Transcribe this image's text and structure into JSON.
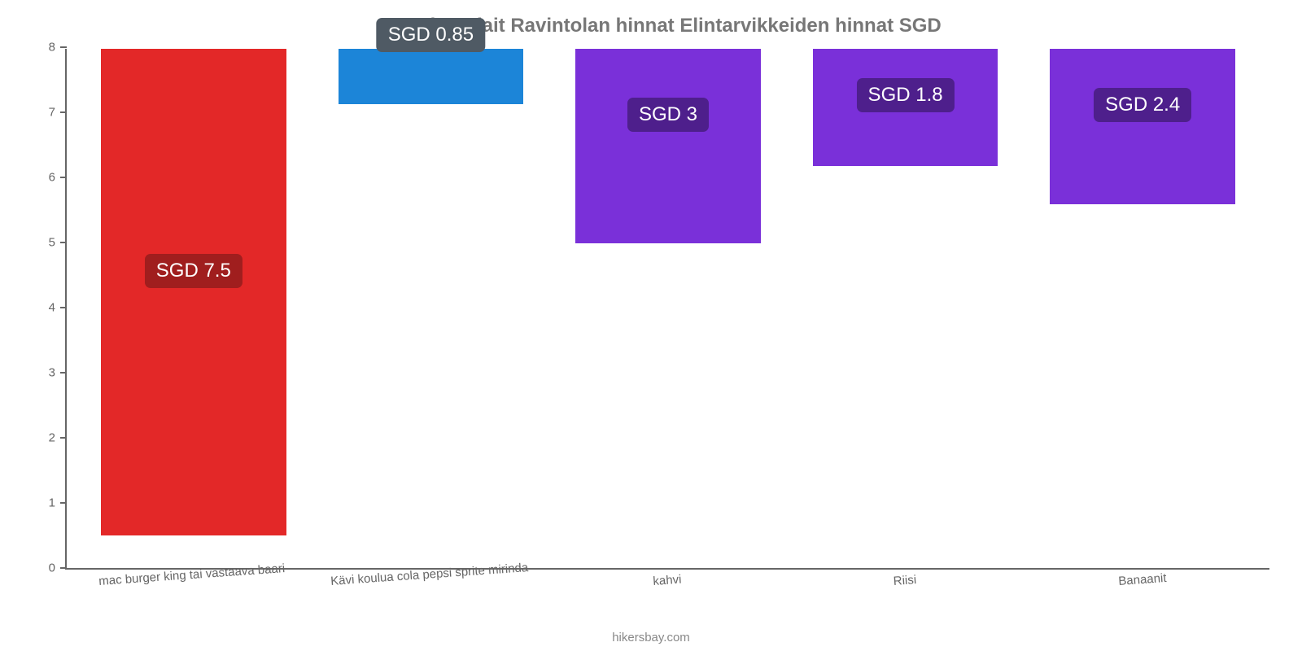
{
  "chart": {
    "type": "bar",
    "title": "Kuala Belait Ravintolan hinnat Elintarvikkeiden hinnat SGD",
    "title_fontsize": 24,
    "title_color": "#777777",
    "background_color": "#ffffff",
    "axis_color": "#666666",
    "label_color": "#666666",
    "label_fontsize": 15,
    "ylim": [
      0,
      8
    ],
    "ytick_step": 1,
    "yticks": [
      "0",
      "1",
      "2",
      "3",
      "4",
      "5",
      "6",
      "7",
      "8"
    ],
    "bar_width": 0.78,
    "categories": [
      "mac burger king tai vastaava baari",
      "Kävi koulua cola pepsi sprite mirinda",
      "kahvi",
      "Riisi",
      "Banaanit"
    ],
    "values": [
      7.5,
      0.85,
      3,
      1.8,
      2.4
    ],
    "value_labels": [
      "SGD 7.5",
      "SGD 0.85",
      "SGD 3",
      "SGD 1.8",
      "SGD 2.4"
    ],
    "bar_colors": [
      "#e32828",
      "#1c85d8",
      "#7a30d9",
      "#7a30d9",
      "#7a30d9"
    ],
    "badge_colors": [
      "#a01e1e",
      "#4f5a64",
      "#4e1f8c",
      "#4e1f8c",
      "#4e1f8c"
    ],
    "badge_text_color": "#ffffff",
    "badge_fontsize": 24,
    "footer": "hikersbay.com",
    "footer_color": "#888888"
  }
}
